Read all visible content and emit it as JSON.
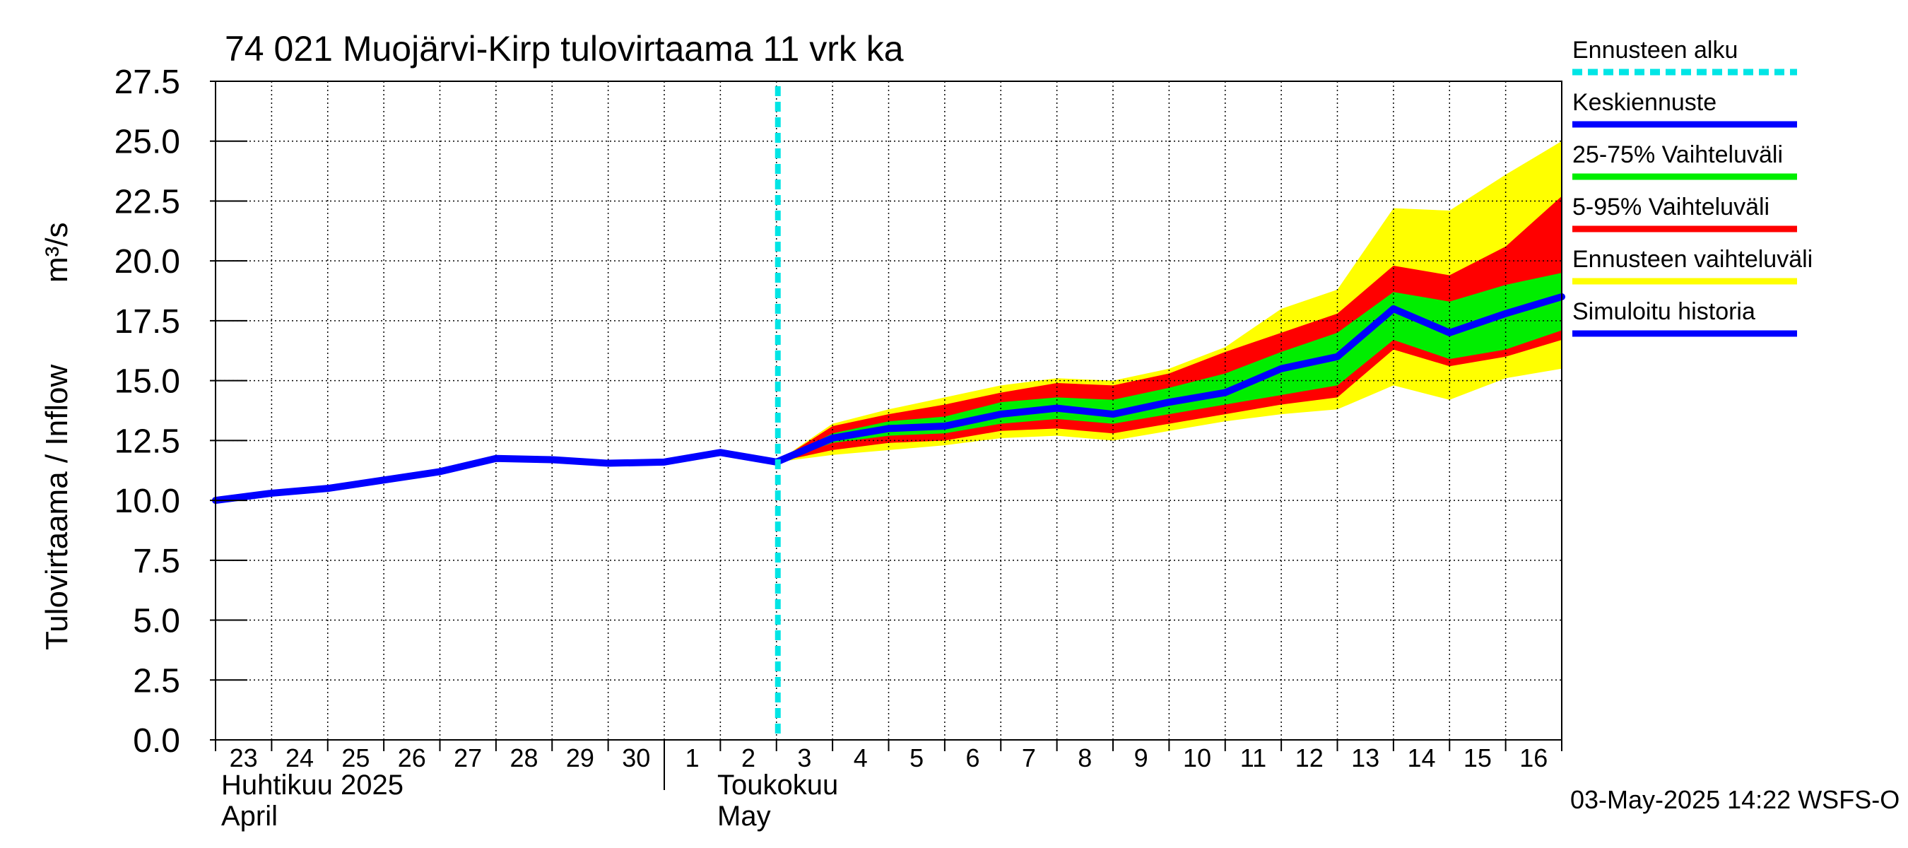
{
  "chart_data": {
    "type": "area",
    "title": "74 021 Muojärvi-Kirp tulovirtaama 11 vrk ka",
    "ylabel": "Tulovirtaama / Inflow",
    "yunit": "m³/s",
    "ylim": [
      0,
      27.5
    ],
    "yticks": [
      "0.0",
      "2.5",
      "5.0",
      "7.5",
      "10.0",
      "12.5",
      "15.0",
      "17.5",
      "20.0",
      "22.5",
      "25.0",
      "27.5"
    ],
    "grid": true,
    "legend_position": "right",
    "x_dates": [
      "2025-04-23",
      "2025-04-24",
      "2025-04-25",
      "2025-04-26",
      "2025-04-27",
      "2025-04-28",
      "2025-04-29",
      "2025-04-30",
      "2025-05-01",
      "2025-05-02",
      "2025-05-03",
      "2025-05-04",
      "2025-05-05",
      "2025-05-06",
      "2025-05-07",
      "2025-05-08",
      "2025-05-09",
      "2025-05-10",
      "2025-05-11",
      "2025-05-12",
      "2025-05-13",
      "2025-05-14",
      "2025-05-15",
      "2025-05-16",
      "2025-05-17"
    ],
    "xticks": [
      "23",
      "24",
      "25",
      "26",
      "27",
      "28",
      "29",
      "30",
      "1",
      "2",
      "3",
      "4",
      "5",
      "6",
      "7",
      "8",
      "9",
      "10",
      "11",
      "12",
      "13",
      "14",
      "15",
      "16"
    ],
    "month_labels": [
      {
        "fi": "Huhtikuu  2025",
        "en": "April"
      },
      {
        "fi": "Toukokuu",
        "en": "May"
      }
    ],
    "forecast_start": "2025-05-03",
    "series": [
      {
        "name": "Simuloitu historia",
        "color": "#0000ff",
        "x": [
          "2025-04-23",
          "2025-04-24",
          "2025-04-25",
          "2025-04-26",
          "2025-04-27",
          "2025-04-28",
          "2025-04-29",
          "2025-04-30",
          "2025-05-01",
          "2025-05-02",
          "2025-05-03"
        ],
        "y": [
          10.0,
          10.3,
          10.5,
          10.85,
          11.2,
          11.75,
          11.7,
          11.55,
          11.6,
          12.0,
          11.6
        ]
      },
      {
        "name": "Keskiennuste",
        "color": "#0000ff",
        "x": [
          "2025-05-03",
          "2025-05-04",
          "2025-05-05",
          "2025-05-06",
          "2025-05-07",
          "2025-05-08",
          "2025-05-09",
          "2025-05-10",
          "2025-05-11",
          "2025-05-12",
          "2025-05-13",
          "2025-05-14",
          "2025-05-15",
          "2025-05-16",
          "2025-05-17"
        ],
        "y": [
          11.6,
          12.6,
          13.0,
          13.1,
          13.6,
          13.85,
          13.6,
          14.1,
          14.5,
          15.5,
          16.0,
          18.0,
          17.0,
          17.8,
          18.5
        ]
      }
    ],
    "bands": [
      {
        "name": "Ennusteen vaihteluväli",
        "color": "#ffff00",
        "x": [
          "2025-05-03",
          "2025-05-04",
          "2025-05-05",
          "2025-05-06",
          "2025-05-07",
          "2025-05-08",
          "2025-05-09",
          "2025-05-10",
          "2025-05-11",
          "2025-05-12",
          "2025-05-13",
          "2025-05-14",
          "2025-05-15",
          "2025-05-16",
          "2025-05-17"
        ],
        "low": [
          11.6,
          11.9,
          12.1,
          12.3,
          12.6,
          12.7,
          12.5,
          12.9,
          13.3,
          13.6,
          13.8,
          14.8,
          14.2,
          15.1,
          15.5
        ],
        "high": [
          11.6,
          13.2,
          13.8,
          14.3,
          14.8,
          15.1,
          15.0,
          15.5,
          16.4,
          18.0,
          18.8,
          22.2,
          22.1,
          23.6,
          25.0
        ]
      },
      {
        "name": "5-95% Vaihteluväli",
        "color": "#ff0000",
        "x": [
          "2025-05-03",
          "2025-05-04",
          "2025-05-05",
          "2025-05-06",
          "2025-05-07",
          "2025-05-08",
          "2025-05-09",
          "2025-05-10",
          "2025-05-11",
          "2025-05-12",
          "2025-05-13",
          "2025-05-14",
          "2025-05-15",
          "2025-05-16",
          "2025-05-17"
        ],
        "low": [
          11.6,
          12.1,
          12.4,
          12.5,
          12.9,
          13.0,
          12.8,
          13.2,
          13.6,
          14.0,
          14.3,
          16.3,
          15.6,
          16.0,
          16.7
        ],
        "high": [
          11.6,
          13.1,
          13.6,
          14.0,
          14.5,
          14.9,
          14.8,
          15.3,
          16.2,
          17.0,
          17.8,
          19.8,
          19.4,
          20.6,
          22.7
        ]
      },
      {
        "name": "25-75% Vaihteluväli",
        "color": "#00ee00",
        "x": [
          "2025-05-03",
          "2025-05-04",
          "2025-05-05",
          "2025-05-06",
          "2025-05-07",
          "2025-05-08",
          "2025-05-09",
          "2025-05-10",
          "2025-05-11",
          "2025-05-12",
          "2025-05-13",
          "2025-05-14",
          "2025-05-15",
          "2025-05-16",
          "2025-05-17"
        ],
        "low": [
          11.6,
          12.4,
          12.7,
          12.8,
          13.2,
          13.4,
          13.2,
          13.6,
          14.0,
          14.4,
          14.8,
          16.7,
          15.9,
          16.3,
          17.1
        ],
        "high": [
          11.6,
          12.8,
          13.3,
          13.5,
          14.1,
          14.3,
          14.2,
          14.7,
          15.3,
          16.2,
          17.0,
          18.7,
          18.3,
          19.0,
          19.5
        ]
      }
    ],
    "legend": [
      {
        "label": "Ennusteen alku",
        "color": "#00e5e5",
        "style": "dashed"
      },
      {
        "label": "Keskiennuste",
        "color": "#0000ff",
        "style": "solid"
      },
      {
        "label": "25-75% Vaihteluväli",
        "color": "#00ee00",
        "style": "solid"
      },
      {
        "label": "5-95% Vaihteluväli",
        "color": "#ff0000",
        "style": "solid"
      },
      {
        "label": "Ennusteen vaihteluväli",
        "color": "#ffff00",
        "style": "solid"
      },
      {
        "label": "Simuloitu historia",
        "color": "#0000ff",
        "style": "solid"
      }
    ],
    "footer": "03-May-2025 14:22 WSFS-O"
  }
}
